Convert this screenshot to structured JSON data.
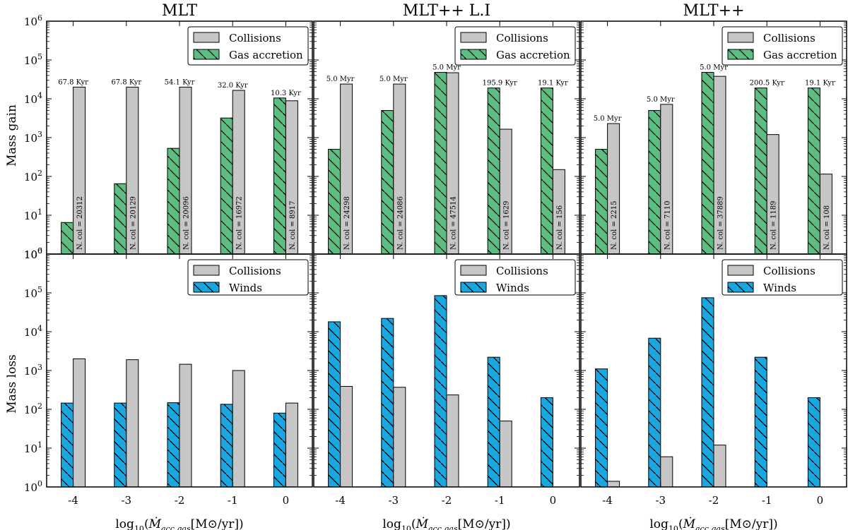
{
  "figure": {
    "ylabel_top": "Mass gain",
    "ylabel_bottom": "Mass loss",
    "xlabel": "log10(Ṁacc,gas[M⊙/yr])",
    "xlabel_parts": {
      "prefix": "log",
      "base": "10",
      "mdot": "Ṁ",
      "sub": "acc,gas",
      "units": "[M⊙/yr])"
    },
    "yticks_top": [
      "10",
      "10",
      "10",
      "10",
      "10",
      "10",
      "10"
    ],
    "ytick_exps_top": [
      "0",
      "1",
      "2",
      "3",
      "4",
      "5",
      "6"
    ],
    "yticks_bottom": [
      "10",
      "10",
      "10",
      "10",
      "10",
      "10"
    ],
    "ytick_exps_bottom": [
      "0",
      "1",
      "2",
      "3",
      "4",
      "5"
    ],
    "top_axis_label": "10",
    "top_axis_exp": "6",
    "xticks": [
      "-4",
      "-3",
      "-2",
      "-1",
      "0"
    ]
  },
  "legend": {
    "collisions": "Collisions",
    "gas_accretion": "Gas accretion",
    "winds": "Winds"
  },
  "colors": {
    "accretion": "#5cbd80",
    "winds": "#1aa6e0",
    "collisions": "#c6c6c6"
  },
  "chart_data": [
    {
      "type": "bar",
      "title": "MLT",
      "scale": "log",
      "ylim_gain": [
        1,
        1000000
      ],
      "ylim_loss": [
        1,
        1000000
      ],
      "categories": [
        "-4",
        "-3",
        "-2",
        "-1",
        "0"
      ],
      "gain": {
        "series": [
          {
            "name": "Gas accretion",
            "values": [
              6.5,
              65,
              530,
              3200,
              10500
            ]
          },
          {
            "name": "Collisions",
            "values": [
              20000,
              20000,
              20000,
              16500,
              8900
            ]
          }
        ],
        "time_labels": [
          "67.8 Kyr",
          "67.8 Kyr",
          "54.1 Kyr",
          "32.0 Kyr",
          "10.3 Kyr"
        ],
        "ncol_labels": [
          "N. col = 20312",
          "N. col = 20129",
          "N. col = 20096",
          "N. col = 16972",
          "N. col = 8917"
        ]
      },
      "loss": {
        "series": [
          {
            "name": "Winds",
            "values": [
              145,
              145,
              148,
              135,
              80
            ]
          },
          {
            "name": "Collisions",
            "values": [
              2000,
              1900,
              1450,
              1000,
              145
            ]
          }
        ]
      }
    },
    {
      "type": "bar",
      "title": "MLT++ L.I",
      "scale": "log",
      "ylim_gain": [
        1,
        1000000
      ],
      "ylim_loss": [
        1,
        1000000
      ],
      "categories": [
        "-4",
        "-3",
        "-2",
        "-1",
        "0"
      ],
      "gain": {
        "series": [
          {
            "name": "Gas accretion",
            "values": [
              500,
              5000,
              48000,
              19000,
              19000
            ]
          },
          {
            "name": "Collisions",
            "values": [
              24000,
              24000,
              47000,
              1650,
              150
            ]
          }
        ],
        "time_labels": [
          "5.0 Myr",
          "5.0 Myr",
          "5.0 Myr",
          "195.9 Kyr",
          "19.1 Kyr"
        ],
        "ncol_labels": [
          "N. col = 24298",
          "N. col = 24086",
          "N. col = 47514",
          "N. col = 1629",
          "N. col = 156"
        ]
      },
      "loss": {
        "series": [
          {
            "name": "Winds",
            "values": [
              18000,
              22000,
              85000,
              2200,
              200
            ]
          },
          {
            "name": "Collisions",
            "values": [
              390,
              370,
              235,
              50,
              1
            ]
          }
        ]
      }
    },
    {
      "type": "bar",
      "title": "MLT++",
      "scale": "log",
      "ylim_gain": [
        1,
        1000000
      ],
      "ylim_loss": [
        1,
        1000000
      ],
      "categories": [
        "-4",
        "-3",
        "-2",
        "-1",
        "0"
      ],
      "gain": {
        "series": [
          {
            "name": "Gas accretion",
            "values": [
              500,
              5000,
              48000,
              19000,
              19000
            ]
          },
          {
            "name": "Collisions",
            "values": [
              2300,
              7200,
              38000,
              1200,
              115
            ]
          }
        ],
        "time_labels": [
          "5.0 Myr",
          "5.0 Myr",
          "5.0 Myr",
          "200.5 Kyr",
          "19.1 Kyr"
        ],
        "ncol_labels": [
          "N. col = 2215",
          "N. col = 7110",
          "N. col = 37889",
          "N. col = 1189",
          "N. col = 108"
        ]
      },
      "loss": {
        "series": [
          {
            "name": "Winds",
            "values": [
              1100,
              6800,
              75000,
              2200,
              200
            ]
          },
          {
            "name": "Collisions",
            "values": [
              1.4,
              6,
              12,
              1,
              1
            ]
          }
        ]
      }
    }
  ]
}
